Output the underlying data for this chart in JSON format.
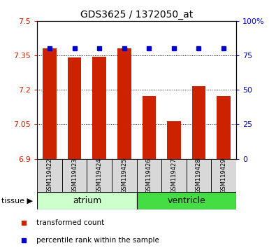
{
  "title": "GDS3625 / 1372050_at",
  "samples": [
    "GSM119422",
    "GSM119423",
    "GSM119424",
    "GSM119425",
    "GSM119426",
    "GSM119427",
    "GSM119428",
    "GSM119429"
  ],
  "transformed_counts": [
    7.38,
    7.34,
    7.345,
    7.38,
    7.175,
    7.065,
    7.215,
    7.175
  ],
  "percentile_values": [
    80,
    80,
    80,
    80,
    80,
    80,
    80,
    80
  ],
  "tissue_groups": [
    {
      "label": "atrium",
      "indices": [
        0,
        1,
        2,
        3
      ],
      "color": "#ccffcc"
    },
    {
      "label": "ventricle",
      "indices": [
        4,
        5,
        6,
        7
      ],
      "color": "#44dd44"
    }
  ],
  "ylim_left": [
    6.9,
    7.5
  ],
  "ylim_right": [
    0,
    100
  ],
  "yticks_left": [
    6.9,
    7.05,
    7.2,
    7.35,
    7.5
  ],
  "yticks_left_labels": [
    "6.9",
    "7.05",
    "7.2",
    "7.35",
    "7.5"
  ],
  "yticks_right": [
    0,
    25,
    50,
    75,
    100
  ],
  "yticks_right_labels": [
    "0",
    "25",
    "50",
    "75",
    "100%"
  ],
  "gridlines": [
    7.05,
    7.2,
    7.35
  ],
  "bar_color": "#cc2200",
  "dot_color": "#0000cc",
  "bar_width": 0.55,
  "sample_box_color": "#d8d8d8",
  "legend_items": [
    {
      "label": "transformed count",
      "color": "#cc2200"
    },
    {
      "label": "percentile rank within the sample",
      "color": "#0000cc"
    }
  ],
  "tissue_label": "tissue",
  "figsize": [
    3.95,
    3.54
  ],
  "dpi": 100
}
